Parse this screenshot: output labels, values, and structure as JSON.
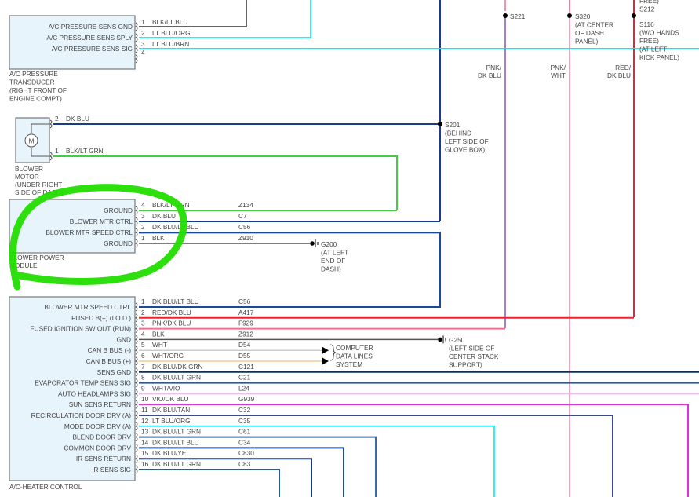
{
  "components": {
    "pressure_transducer": {
      "name_lines": [
        "A/C PRESSURE",
        "TRANSDUCER",
        "(RIGHT FRONT OF",
        "ENGINE COMPT)"
      ],
      "pins": [
        {
          "num": "1",
          "label": "A/C PRESSURE SENS GND",
          "wire": "BLK/LT BLU",
          "circuit": "",
          "color": "#666666"
        },
        {
          "num": "2",
          "label": "A/C PRESSURE SENS SPLY",
          "wire": "LT BLU/ORG",
          "circuit": "",
          "color": "#33e8e8"
        },
        {
          "num": "3",
          "label": "A/C PRESSURE SENS SIG",
          "wire": "LT BLU/BRN",
          "circuit": "",
          "color": "#33d8e0"
        },
        {
          "num": "4",
          "label": "",
          "wire": "",
          "circuit": "",
          "color": ""
        }
      ]
    },
    "blower_motor": {
      "name_lines": [
        "BLOWER",
        "MOTOR",
        "(UNDER RIGHT",
        "SIDE OF DASH)"
      ],
      "symbol": "M",
      "pins": [
        {
          "num": "2",
          "wire": "DK BLU",
          "color": "#1a3a8a"
        },
        {
          "num": "1",
          "wire": "BLK/LT GRN",
          "color": "#44cc44"
        }
      ]
    },
    "blower_power_module": {
      "name_lines": [
        "BLOWER POWER",
        "MODULE"
      ],
      "pins": [
        {
          "num": "4",
          "label": "GROUND",
          "wire": "BLK/LT GRN",
          "circuit": "Z134",
          "color": "#44cc44"
        },
        {
          "num": "3",
          "label": "BLOWER MTR CTRL",
          "wire": "DK BLU",
          "circuit": "C7",
          "color": "#1a3a8a"
        },
        {
          "num": "2",
          "label": "BLOWER MTR SPEED CTRL",
          "wire": "DK BLU/LT BLU",
          "circuit": "C56",
          "color": "#1a4a9a"
        },
        {
          "num": "1",
          "label": "GROUND",
          "wire": "BLK",
          "circuit": "Z910",
          "color": "#555555"
        }
      ]
    },
    "heater_control": {
      "name_lines": [
        "A/C-HEATER CONTROL"
      ],
      "pins": [
        {
          "num": "1",
          "label": "BLOWER MTR SPEED CTRL",
          "wire": "DK BLU/LT BLU",
          "circuit": "C56",
          "color": "#1a4a9a"
        },
        {
          "num": "2",
          "label": "FUSED B(+) (I.O.D.)",
          "wire": "RED/DK BLU",
          "circuit": "A417",
          "color": "#ee2233"
        },
        {
          "num": "3",
          "label": "FUSED IGNITION SW OUT (RUN)",
          "wire": "PNK/DK BLU",
          "circuit": "F929",
          "color": "#f07090"
        },
        {
          "num": "4",
          "label": "GND",
          "wire": "BLK",
          "circuit": "Z912",
          "color": "#555555"
        },
        {
          "num": "5",
          "label": "CAN B BUS (-)",
          "wire": "WHT",
          "circuit": "D54",
          "color": "#cccccc"
        },
        {
          "num": "6",
          "label": "CAN B BUS (+)",
          "wire": "WHT/ORG",
          "circuit": "D55",
          "color": "#f8c898"
        },
        {
          "num": "7",
          "label": "SENS GND",
          "wire": "DK BLU/DK GRN",
          "circuit": "C121",
          "color": "#0a3060"
        },
        {
          "num": "8",
          "label": "EVAPORATOR TEMP SENS SIG",
          "wire": "DK BLU/LT GRN",
          "circuit": "C21",
          "color": "#2a5a9a"
        },
        {
          "num": "9",
          "label": "AUTO HEADLAMPS SIG",
          "wire": "WHT/VIO",
          "circuit": "L24",
          "color": "#f0b8f0"
        },
        {
          "num": "10",
          "label": "SUN SENS RETURN",
          "wire": "VIO/DK BLU",
          "circuit": "G939",
          "color": "#e030e0"
        },
        {
          "num": "11",
          "label": "RECIRCULATION DOOR DRV (A)",
          "wire": "DK BLU/TAN",
          "circuit": "C32",
          "color": "#3a4a8a"
        },
        {
          "num": "12",
          "label": "MODE DOOR DRV (A)",
          "wire": "LT BLU/ORG",
          "circuit": "C35",
          "color": "#33eeee"
        },
        {
          "num": "13",
          "label": "BLEND DOOR DRV",
          "wire": "DK BLU/LT GRN",
          "circuit": "C61",
          "color": "#3a6aa0"
        },
        {
          "num": "14",
          "label": "COMMON DOOR DRV",
          "wire": "DK BLU/LT BLU",
          "circuit": "C34",
          "color": "#1a4a9a"
        },
        {
          "num": "15",
          "label": "IR SENS RETURN",
          "wire": "DK BLU/YEL",
          "circuit": "C830",
          "color": "#1a3a7a"
        },
        {
          "num": "16",
          "label": "IR SENS SIG",
          "wire": "DK BLU/LT GRN",
          "circuit": "C83",
          "color": "#2a5a9a"
        }
      ]
    }
  },
  "splices": {
    "s201": [
      "S201",
      "(BEHIND",
      "LEFT SIDE OF",
      "GLOVE BOX)"
    ],
    "s221": [
      "S221"
    ],
    "s320": [
      "S320",
      "(AT CENTER",
      "OF DASH",
      "PANEL)"
    ],
    "s212": [
      "FREE)",
      "S212"
    ],
    "s116": [
      "S116",
      "(W/O HANDS",
      "FREE)",
      "(AT LEFT",
      "KICK PANEL)"
    ]
  },
  "vertical_wires": {
    "pnk_dk_blu": [
      "PNK/",
      "DK BLU"
    ],
    "pnk_wht": [
      "PNK/",
      "WHT"
    ],
    "red_dk_blu": [
      "RED/",
      "DK BLU"
    ]
  },
  "grounds": {
    "g200": [
      "G200",
      "(AT LEFT",
      "END OF",
      "DASH)"
    ],
    "g250": [
      "G250",
      "(LEFT SIDE OF",
      "CENTER STACK",
      "SUPPORT)"
    ]
  },
  "data_lines": [
    "COMPUTER",
    "DATA LINES",
    "SYSTEM"
  ],
  "annotation_color": "#22dd00"
}
